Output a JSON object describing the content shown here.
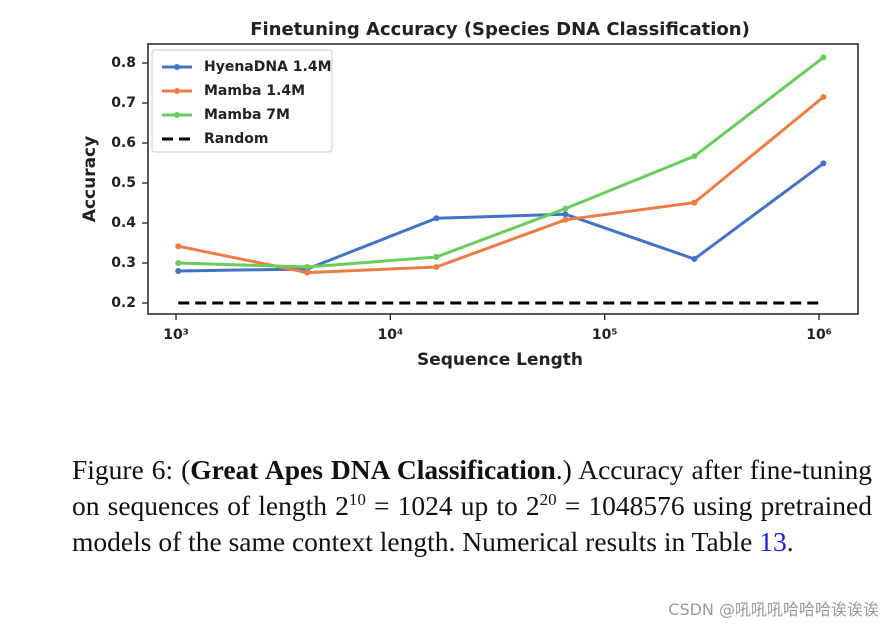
{
  "chart_data": {
    "type": "line",
    "title": "Finetuning Accuracy (Species DNA Classification)",
    "xlabel": "Sequence Length",
    "ylabel": "Accuracy",
    "xscale": "log",
    "x": [
      1024,
      4096,
      16384,
      65536,
      262144,
      1048576
    ],
    "series": [
      {
        "name": "HyenaDNA 1.4M",
        "color": "#4472c4",
        "linestyle": "solid",
        "marker": true,
        "values": [
          0.28,
          0.285,
          0.412,
          0.422,
          0.31,
          0.549
        ]
      },
      {
        "name": "Mamba 1.4M",
        "color": "#ed7d45",
        "linestyle": "solid",
        "marker": true,
        "values": [
          0.342,
          0.276,
          0.29,
          0.408,
          0.451,
          0.715
        ]
      },
      {
        "name": "Mamba 7M",
        "color": "#6acc5c",
        "linestyle": "solid",
        "marker": true,
        "values": [
          0.3,
          0.29,
          0.315,
          0.436,
          0.567,
          0.814
        ]
      },
      {
        "name": "Random",
        "color": "#000000",
        "linestyle": "dashed",
        "marker": false,
        "values": [
          0.2,
          0.2,
          0.2,
          0.2,
          0.2,
          0.2
        ]
      }
    ],
    "xlim": [
      740,
      1520000
    ],
    "ylim": [
      0.1725,
      0.8475
    ],
    "xticks": [
      {
        "value": 1000,
        "label": "10³"
      },
      {
        "value": 10000,
        "label": "10⁴"
      },
      {
        "value": 100000,
        "label": "10⁵"
      },
      {
        "value": 1000000,
        "label": "10⁶"
      }
    ],
    "yticks": [
      0.2,
      0.3,
      0.4,
      0.5,
      0.6,
      0.7,
      0.8
    ],
    "grid": false,
    "legend": "upper left"
  },
  "caption": {
    "parts": [
      "Figure 6: (",
      "Great Apes DNA Classification",
      ".) Accuracy after fine-tuning on sequences of length 2",
      "10",
      " = 1024 up to 2",
      "20",
      " = 1048576 using pretrained models of the same context length. Numerical results in Table ",
      "13",
      "."
    ]
  },
  "watermark": "CSDN @吼吼吼哈哈哈诶诶诶"
}
